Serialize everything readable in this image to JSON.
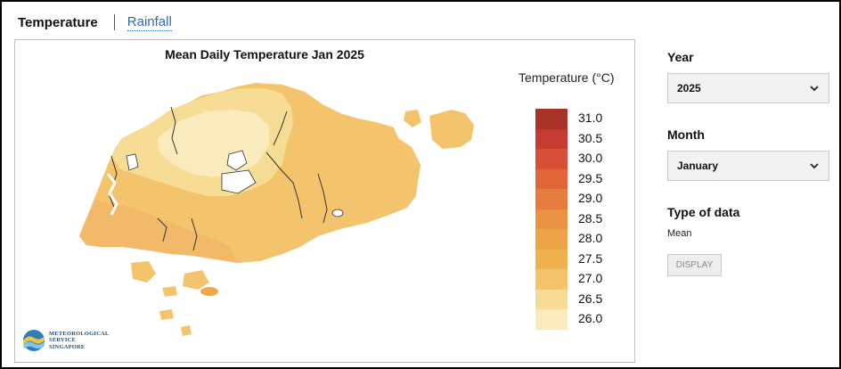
{
  "tabs": {
    "active": "Temperature",
    "other": "Rainfall"
  },
  "map": {
    "title": "Mean Daily Temperature Jan 2025",
    "legend_title": "Temperature (°C)",
    "legend": [
      {
        "label": "31.0",
        "color": "#a83228"
      },
      {
        "label": "30.5",
        "color": "#c63c30"
      },
      {
        "label": "30.0",
        "color": "#d94e36"
      },
      {
        "label": "29.5",
        "color": "#e2663a"
      },
      {
        "label": "29.0",
        "color": "#e67c3e"
      },
      {
        "label": "28.5",
        "color": "#ea9244"
      },
      {
        "label": "28.0",
        "color": "#eda347"
      },
      {
        "label": "27.5",
        "color": "#f0b04d"
      },
      {
        "label": "27.0",
        "color": "#f3c46b"
      },
      {
        "label": "26.5",
        "color": "#f6dc94"
      },
      {
        "label": "26.0",
        "color": "#f9ebbb"
      }
    ],
    "logo_lines": [
      "METEOROLOGICAL",
      "SERVICE",
      "SINGAPORE"
    ]
  },
  "controls": {
    "year_label": "Year",
    "year_value": "2025",
    "month_label": "Month",
    "month_value": "January",
    "type_label": "Type of data",
    "type_value": "Mean",
    "display_button": "DISPLAY"
  }
}
